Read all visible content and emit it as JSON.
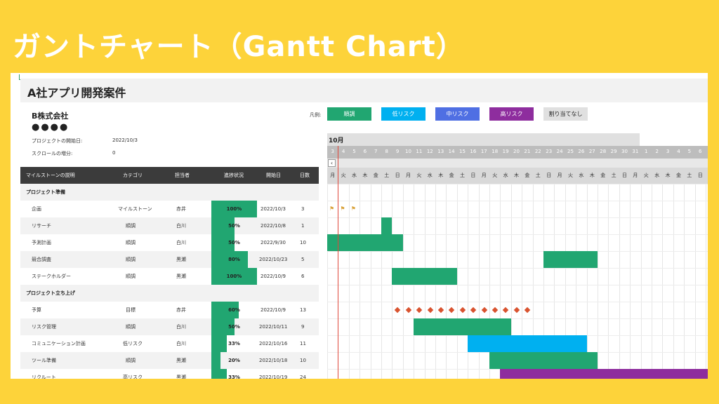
{
  "banner": {
    "title": "ガントチャート（Gantt Chart）"
  },
  "project": {
    "title": "A社アプリ開発案件",
    "company": "B株式会社",
    "dots": "●●●●"
  },
  "meta": {
    "start_label": "プロジェクトの開始日:",
    "start_value": "2022/10/3",
    "scroll_label": "スクロールの増分:",
    "scroll_value": "0"
  },
  "legend": {
    "label": "凡例:",
    "items": [
      {
        "label": "順調",
        "color": "#21A671"
      },
      {
        "label": "低リスク",
        "color": "#00B0F0"
      },
      {
        "label": "中リスク",
        "color": "#4F6FE3"
      },
      {
        "label": "高リスク",
        "color": "#8E2D9E"
      },
      {
        "label": "割り当てなし",
        "color": "#E0E0E0"
      }
    ]
  },
  "table": {
    "headers": [
      "マイルストーンの説明",
      "カテゴリ",
      "担当者",
      "進捗状況",
      "開始日",
      "日数"
    ],
    "sections": [
      "プロジェクト準備",
      "プロジェクト立ち上げ"
    ],
    "rows": [
      {
        "desc": "企画",
        "category": "マイルストーン",
        "owner": "赤井",
        "progress_label": "100%",
        "progress": 100,
        "start": "2022/10/3",
        "days": "3"
      },
      {
        "desc": "リサーチ",
        "category": "順調",
        "owner": "白川",
        "progress_label": "50%",
        "progress": 50,
        "start": "2022/10/8",
        "days": "1"
      },
      {
        "desc": "予測計画",
        "category": "順調",
        "owner": "白川",
        "progress_label": "50%",
        "progress": 50,
        "start": "2022/9/30",
        "days": "10"
      },
      {
        "desc": "競合調査",
        "category": "順調",
        "owner": "黒瀬",
        "progress_label": "80%",
        "progress": 80,
        "start": "2022/10/23",
        "days": "5"
      },
      {
        "desc": "ステークホルダー",
        "category": "順調",
        "owner": "黒瀬",
        "progress_label": "100%",
        "progress": 100,
        "start": "2022/10/9",
        "days": "6"
      },
      {
        "desc": "予算",
        "category": "目標",
        "owner": "赤井",
        "progress_label": "60%",
        "progress": 60,
        "start": "2022/10/9",
        "days": "13"
      },
      {
        "desc": "リスク管理",
        "category": "順調",
        "owner": "白川",
        "progress_label": "50%",
        "progress": 50,
        "start": "2022/10/11",
        "days": "9"
      },
      {
        "desc": "コミュニケーション計画",
        "category": "低リスク",
        "owner": "白川",
        "progress_label": "33%",
        "progress": 33,
        "start": "2022/10/16",
        "days": "11"
      },
      {
        "desc": "ツール準備",
        "category": "順調",
        "owner": "黒瀬",
        "progress_label": "20%",
        "progress": 20,
        "start": "2022/10/18",
        "days": "10"
      },
      {
        "desc": "リクルート",
        "category": "高リスク",
        "owner": "黒瀬",
        "progress_label": "33%",
        "progress": 33,
        "start": "2022/10/19",
        "days": "24"
      }
    ]
  },
  "gantt": {
    "month": "10月",
    "scroll_button": "‹",
    "days": [
      "3",
      "4",
      "5",
      "6",
      "7",
      "8",
      "9",
      "10",
      "11",
      "12",
      "13",
      "14",
      "15",
      "16",
      "17",
      "18",
      "19",
      "20",
      "21",
      "22",
      "23",
      "24",
      "25",
      "26",
      "27",
      "28",
      "29",
      "30",
      "31",
      "1",
      "2",
      "3",
      "4",
      "5",
      "6"
    ],
    "weekdays": [
      "月",
      "火",
      "水",
      "木",
      "金",
      "土",
      "日",
      "月",
      "火",
      "水",
      "木",
      "金",
      "土",
      "日",
      "月",
      "火",
      "水",
      "木",
      "金",
      "土",
      "日",
      "月",
      "火",
      "水",
      "木",
      "金",
      "土",
      "日",
      "月",
      "火",
      "水",
      "木",
      "金",
      "土",
      "日"
    ],
    "flag_icon": "flag-icon",
    "colors": {
      "ok": "#21A671",
      "low": "#00B0F0",
      "high": "#8E2D9E",
      "milestone": "#D9532F"
    }
  }
}
